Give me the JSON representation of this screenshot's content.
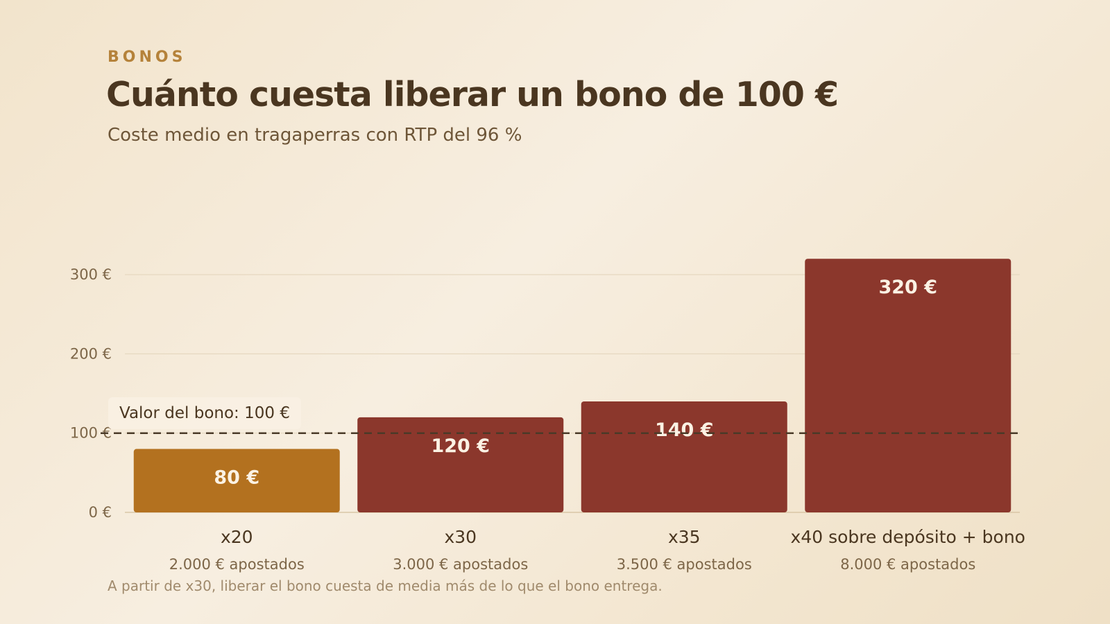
{
  "header": {
    "eyebrow": "BONOS",
    "title": "Cuánto cuesta liberar un bono de 100 €",
    "subtitle": "Coste medio en tragaperras con RTP del 96 %"
  },
  "footnote": "A partir de x30, liberar el bono cuesta de media más de lo que el bono entrega.",
  "colors": {
    "highlight": "#b3711f",
    "default": "#8b372c",
    "grid": "#e6d8c0",
    "reference_line": "#4a3a28"
  },
  "chart_data": {
    "type": "bar",
    "title": "Cuánto cuesta liberar un bono de 100 €",
    "subtitle": "Coste medio en tragaperras con RTP del 96 %",
    "categories": [
      "x20",
      "x30",
      "x35",
      "x40 sobre depósito + bono"
    ],
    "category_sublabels": [
      "2.000 € apostados",
      "3.000 € apostados",
      "3.500 € apostados",
      "8.000 € apostados"
    ],
    "values": [
      80,
      120,
      140,
      320
    ],
    "value_labels": [
      "80 €",
      "120 €",
      "140 €",
      "320 €"
    ],
    "ylim": [
      0,
      320
    ],
    "yticks": [
      0,
      100,
      200,
      300
    ],
    "ytick_labels": [
      "0 €",
      "100 €",
      "200 €",
      "300 €"
    ],
    "grid": true,
    "reference_line": {
      "value": 100,
      "label": "Valor del bono: 100 €",
      "style": "dashed"
    },
    "highlight_index": 0
  }
}
